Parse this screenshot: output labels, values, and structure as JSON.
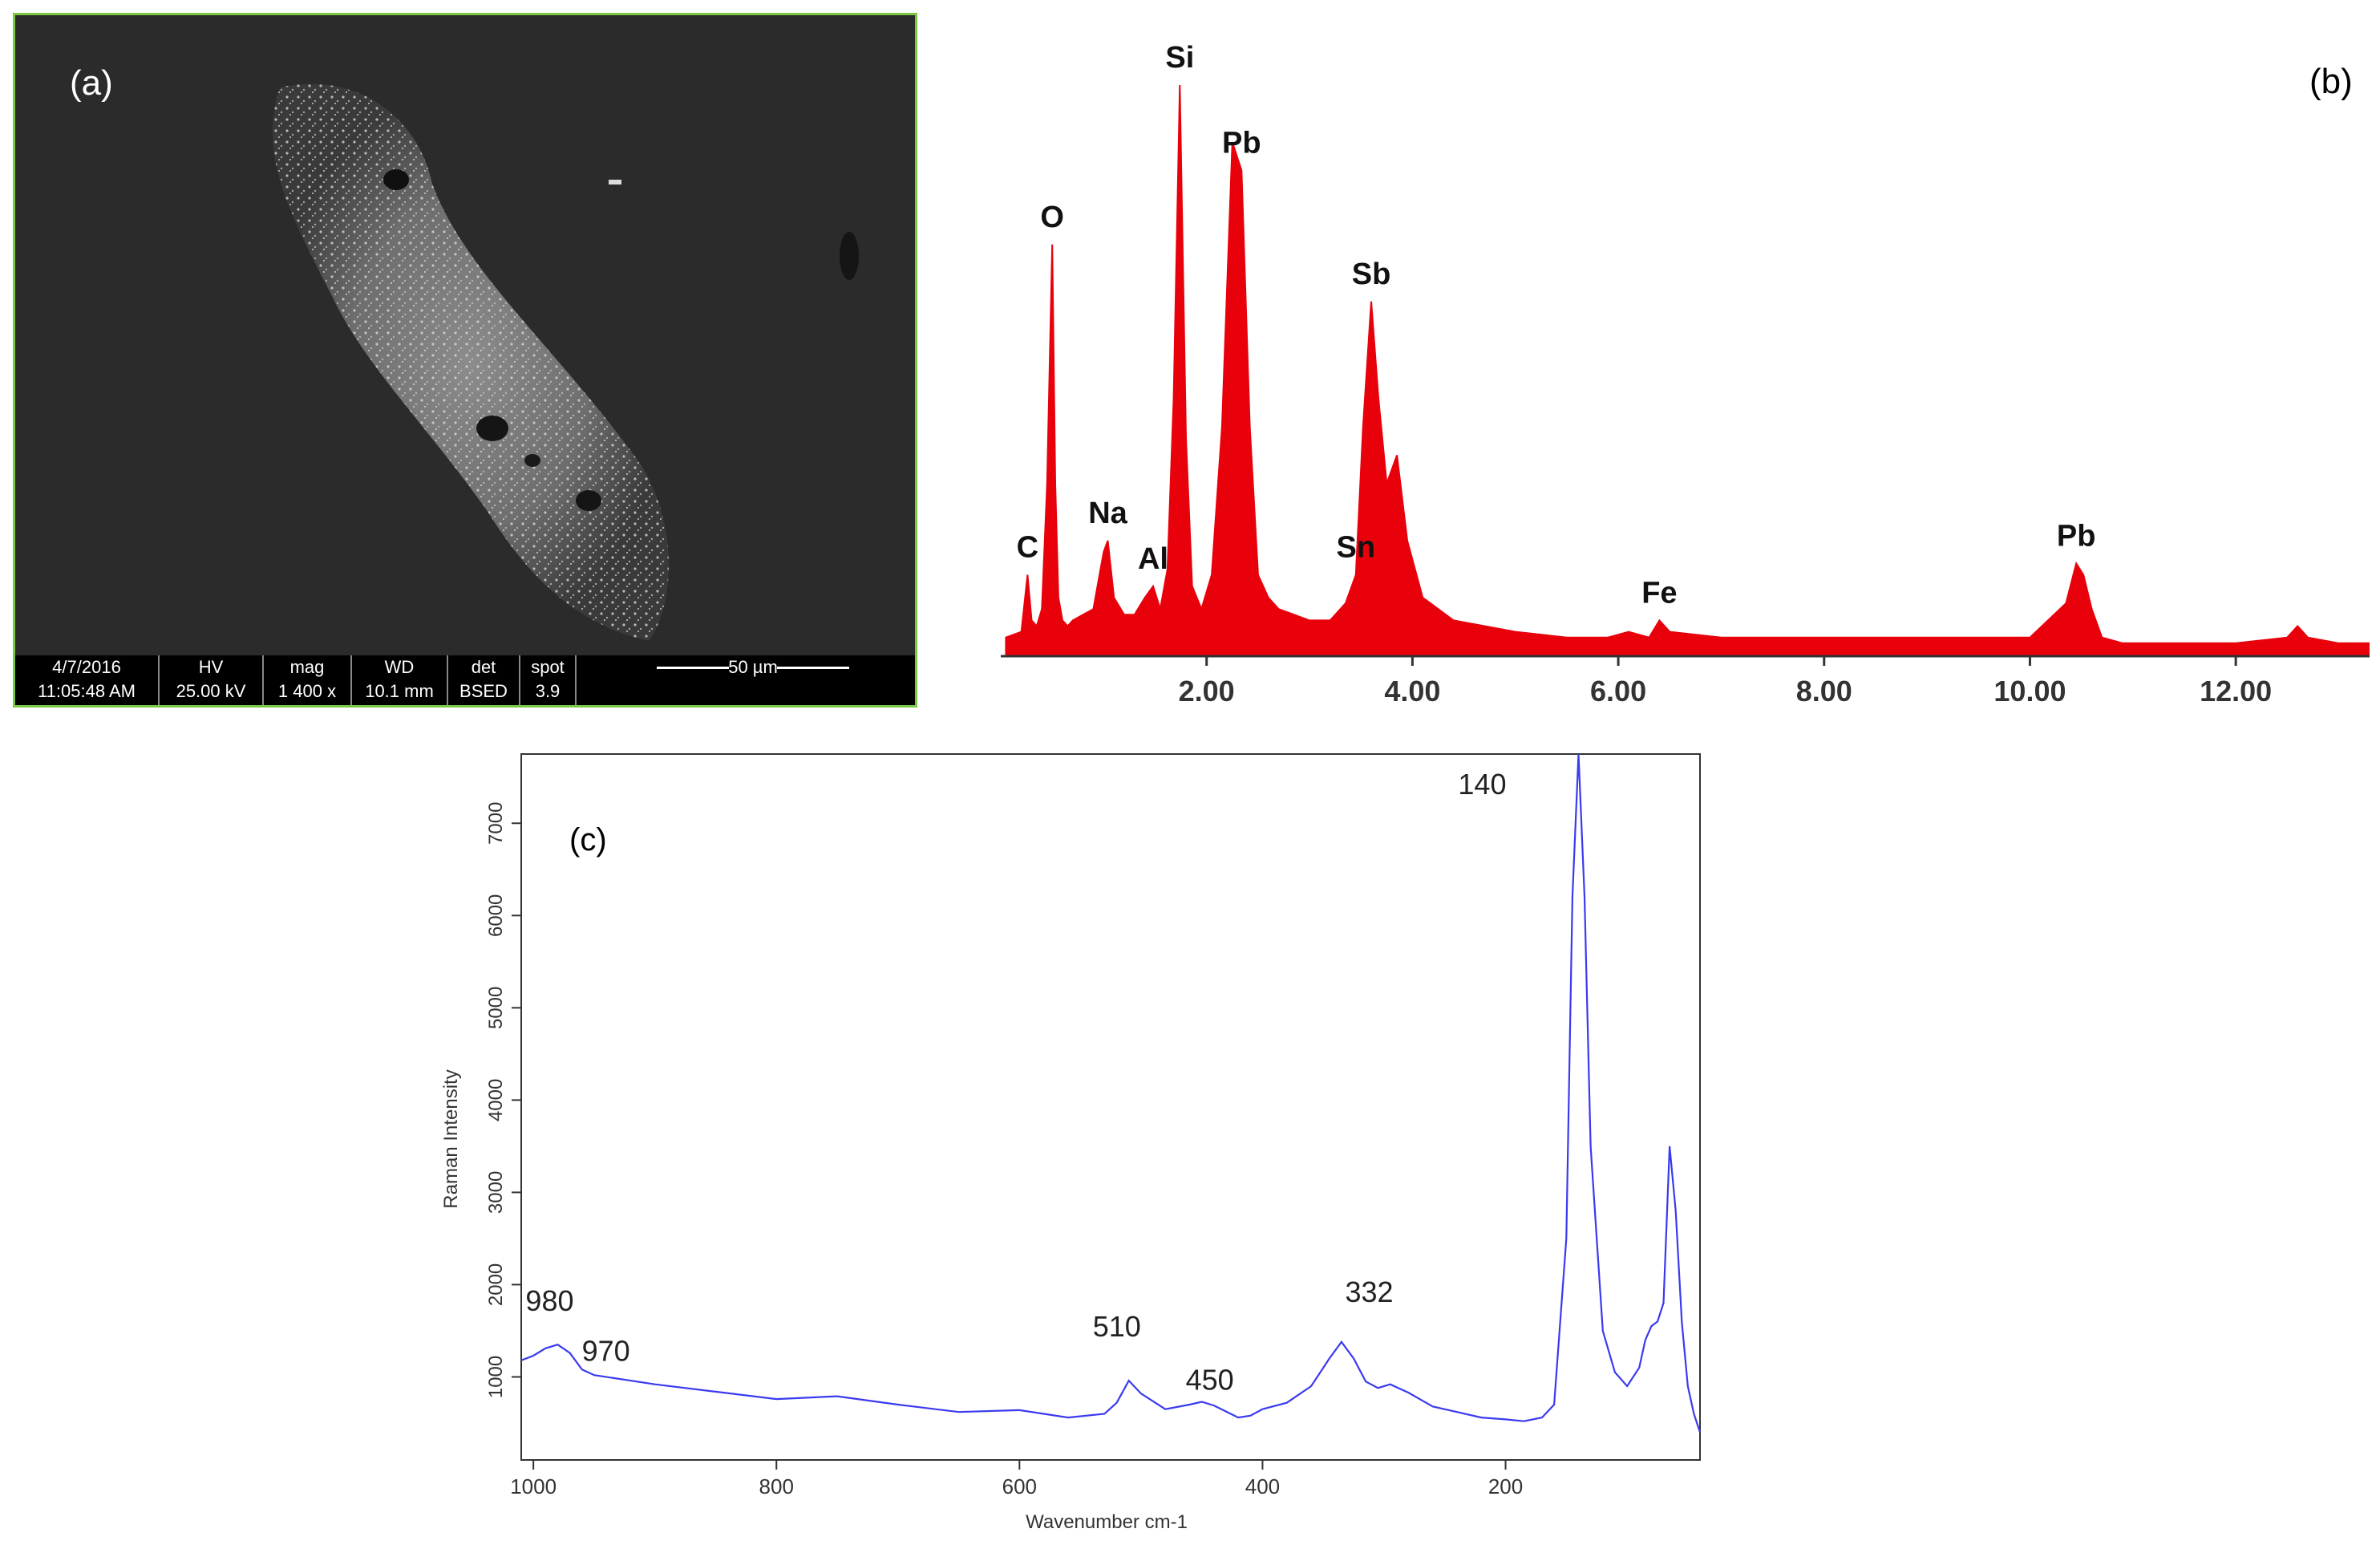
{
  "panel_a": {
    "label": "(a)",
    "info": {
      "date": "4/7/2016",
      "time": "11:05:48 AM",
      "hv_label": "HV",
      "hv_value": "25.00 kV",
      "mag_label": "mag",
      "mag_value": "1 400 x",
      "wd_label": "WD",
      "wd_value": "10.1 mm",
      "det_label": "det",
      "det_value": "BSED",
      "spot_label": "spot",
      "spot_value": "3.9",
      "scale_label": "50 µm"
    }
  },
  "chart_data": [
    {
      "type": "line",
      "panel_label": "(b)",
      "color": "#e8000b",
      "fill": true,
      "xlim": [
        0,
        13.3
      ],
      "ylim": [
        0,
        100
      ],
      "x_ticks": [
        "2.00",
        "4.00",
        "6.00",
        "8.00",
        "10.00",
        "12.00"
      ],
      "x_tick_values": [
        2,
        4,
        6,
        8,
        10,
        12
      ],
      "x": [
        0.05,
        0.2,
        0.26,
        0.3,
        0.35,
        0.4,
        0.45,
        0.5,
        0.53,
        0.56,
        0.6,
        0.65,
        0.7,
        0.8,
        0.9,
        1.0,
        1.04,
        1.1,
        1.2,
        1.3,
        1.4,
        1.48,
        1.55,
        1.62,
        1.68,
        1.74,
        1.8,
        1.86,
        1.95,
        2.05,
        2.15,
        2.25,
        2.34,
        2.42,
        2.5,
        2.6,
        2.7,
        2.85,
        3.0,
        3.2,
        3.35,
        3.45,
        3.52,
        3.6,
        3.67,
        3.75,
        3.85,
        3.95,
        4.1,
        4.4,
        5.0,
        5.5,
        5.9,
        6.1,
        6.3,
        6.4,
        6.5,
        7.0,
        8.0,
        9.0,
        10.0,
        10.35,
        10.45,
        10.52,
        10.6,
        10.7,
        10.9,
        11.5,
        12.0,
        12.5,
        12.6,
        12.7,
        13.0,
        13.3
      ],
      "y": [
        3,
        4,
        14,
        6,
        5,
        8,
        30,
        72,
        30,
        10,
        6,
        5,
        6,
        7,
        8,
        18,
        20,
        10,
        7,
        7,
        10,
        12,
        8,
        15,
        45,
        100,
        38,
        12,
        8,
        14,
        40,
        90,
        85,
        40,
        14,
        10,
        8,
        7,
        6,
        6,
        9,
        14,
        40,
        62,
        45,
        30,
        35,
        20,
        10,
        6,
        4,
        3,
        3,
        4,
        3,
        6,
        4,
        3,
        3,
        3,
        3,
        9,
        16,
        14,
        8,
        3,
        2,
        2,
        2,
        3,
        5,
        3,
        2,
        2
      ],
      "peaks": [
        {
          "label": "C",
          "x": 0.26,
          "y": 14
        },
        {
          "label": "O",
          "x": 0.5,
          "y": 72
        },
        {
          "label": "Na",
          "x": 1.04,
          "y": 20
        },
        {
          "label": "Al",
          "x": 1.48,
          "y": 12
        },
        {
          "label": "Si",
          "x": 1.74,
          "y": 100
        },
        {
          "label": "Pb",
          "x": 2.34,
          "y": 85
        },
        {
          "label": "Sn",
          "x": 3.45,
          "y": 14
        },
        {
          "label": "Sb",
          "x": 3.6,
          "y": 62
        },
        {
          "label": "Fe",
          "x": 6.4,
          "y": 6
        },
        {
          "label": "Pb",
          "x": 10.45,
          "y": 16
        }
      ]
    },
    {
      "type": "line",
      "panel_label": "(c)",
      "color": "#3a3af0",
      "xlabel": "Wavenumber cm-1",
      "ylabel": "Raman Intensity",
      "xlim": [
        1010,
        40
      ],
      "ylim": [
        100,
        7750
      ],
      "x_ticks": [
        "1000",
        "800",
        "600",
        "400",
        "200"
      ],
      "x_tick_values": [
        1000,
        800,
        600,
        400,
        200
      ],
      "y_ticks": [
        "1000",
        "2000",
        "3000",
        "4000",
        "5000",
        "6000",
        "7000"
      ],
      "y_tick_values": [
        1000,
        2000,
        3000,
        4000,
        5000,
        6000,
        7000
      ],
      "x": [
        1010,
        1000,
        990,
        980,
        970,
        960,
        950,
        900,
        850,
        800,
        750,
        700,
        650,
        600,
        560,
        530,
        520,
        510,
        500,
        480,
        460,
        450,
        440,
        420,
        410,
        400,
        380,
        360,
        345,
        335,
        325,
        315,
        305,
        295,
        280,
        260,
        240,
        220,
        200,
        185,
        170,
        160,
        150,
        145,
        140,
        135,
        130,
        120,
        110,
        100,
        90,
        85,
        80,
        75,
        70,
        65,
        60,
        55,
        50,
        45,
        40
      ],
      "y": [
        1180,
        1230,
        1310,
        1350,
        1260,
        1080,
        1020,
        920,
        840,
        760,
        790,
        700,
        620,
        640,
        560,
        600,
        720,
        960,
        820,
        650,
        700,
        730,
        690,
        560,
        580,
        650,
        720,
        900,
        1200,
        1380,
        1200,
        950,
        880,
        920,
        830,
        680,
        620,
        560,
        540,
        520,
        560,
        700,
        2500,
        6200,
        7750,
        6200,
        3500,
        1500,
        1050,
        900,
        1100,
        1400,
        1550,
        1600,
        1800,
        3500,
        2800,
        1600,
        900,
        600,
        400
      ],
      "peaks": [
        {
          "label": "980",
          "x": 980,
          "y": 1350
        },
        {
          "label": "970",
          "x": 970,
          "y": 1260
        },
        {
          "label": "510",
          "x": 510,
          "y": 960
        },
        {
          "label": "450",
          "x": 450,
          "y": 730
        },
        {
          "label": "332",
          "x": 332,
          "y": 1380
        },
        {
          "label": "140",
          "x": 140,
          "y": 7750
        }
      ]
    }
  ]
}
